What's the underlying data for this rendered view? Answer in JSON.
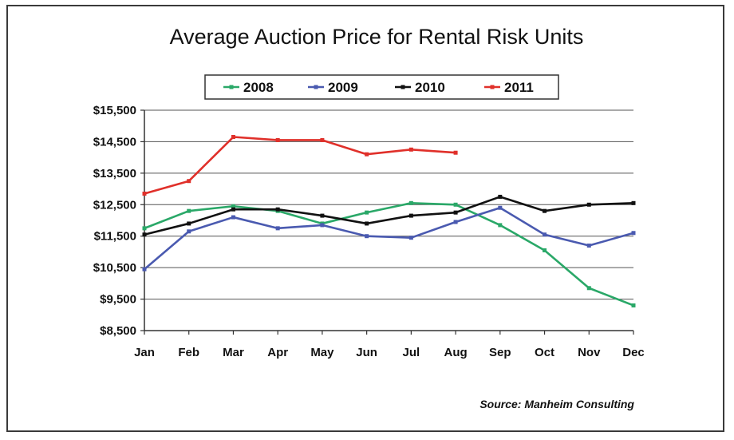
{
  "chart_data": {
    "type": "line",
    "title": "Average Auction Price for Rental Risk Units",
    "xlabel": "",
    "ylabel": "",
    "categories": [
      "Jan",
      "Feb",
      "Mar",
      "Apr",
      "May",
      "Jun",
      "Jul",
      "Aug",
      "Sep",
      "Oct",
      "Nov",
      "Dec"
    ],
    "yticks": [
      "$8,500",
      "$9,500",
      "$10,500",
      "$11,500",
      "$12,500",
      "$13,500",
      "$14,500",
      "$15,500"
    ],
    "ylim": [
      8500,
      15500
    ],
    "grid": true,
    "legend_position": "top-center",
    "series": [
      {
        "name": "2008",
        "color": "#2aa868",
        "values": [
          11750,
          12300,
          12450,
          12300,
          11900,
          12250,
          12550,
          12500,
          11850,
          11050,
          9850,
          9300
        ]
      },
      {
        "name": "2009",
        "color": "#4a5ab0",
        "values": [
          10450,
          11650,
          12100,
          11750,
          11850,
          11500,
          11450,
          11950,
          12400,
          11550,
          11200,
          11600
        ]
      },
      {
        "name": "2010",
        "color": "#111111",
        "values": [
          11550,
          11900,
          12350,
          12350,
          12150,
          11900,
          12150,
          12250,
          12750,
          12300,
          12500,
          12550
        ]
      },
      {
        "name": "2011",
        "color": "#e0302a",
        "values": [
          12850,
          13250,
          14650,
          14550,
          14550,
          14100,
          14250,
          14150,
          null,
          null,
          null,
          null
        ]
      }
    ],
    "source": "Source: Manheim Consulting"
  }
}
